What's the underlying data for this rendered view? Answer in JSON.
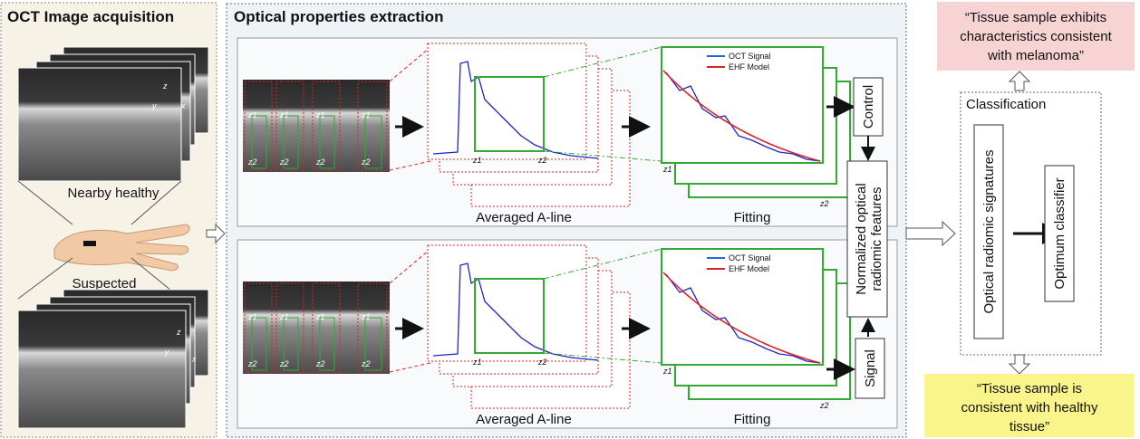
{
  "acquisition": {
    "title": "OCT Image acquisition",
    "labels": [
      "Nearby healthy",
      "Suspected"
    ],
    "axes": [
      "z",
      "y",
      "x"
    ]
  },
  "extraction": {
    "title": "Optical properties extraction",
    "panels": [
      {
        "aline_label": "Averaged A-line",
        "fit_label": "Fitting",
        "legend": [
          "OCT Signal",
          "EHF Model"
        ],
        "depth_labels": [
          "z1",
          "z2"
        ]
      },
      {
        "aline_label": "Averaged A-line",
        "fit_label": "Fitting",
        "legend": [
          "OCT Signal",
          "EHF Model"
        ],
        "depth_labels": [
          "z1",
          "z2"
        ]
      }
    ],
    "control": "Control",
    "signal": "Signal",
    "features": [
      "Normalized optical",
      "radiomic features"
    ]
  },
  "classification": {
    "title": "Classification",
    "signatures": "Optical radiomic signatures",
    "classifier": "Optimum classifier"
  },
  "outcomes": {
    "melanoma": [
      "“Tissue sample exhibits",
      "characteristics consistent",
      "with melanoma”"
    ],
    "healthy": [
      "“Tissue sample is",
      "consistent with healthy",
      "tissue”"
    ]
  }
}
